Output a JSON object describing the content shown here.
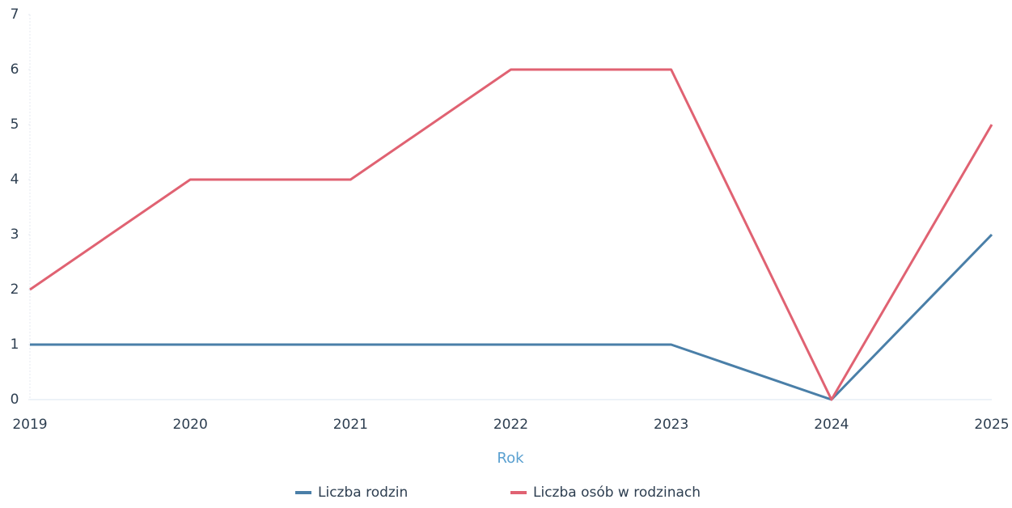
{
  "chart_data": {
    "type": "line",
    "x_label": "Rok",
    "categories": [
      "2019",
      "2020",
      "2021",
      "2022",
      "2023",
      "2024",
      "2025"
    ],
    "series": [
      {
        "name": "Liczba rodzin",
        "color": "#4a7fa8",
        "values": [
          1,
          1,
          1,
          1,
          1,
          0,
          3
        ]
      },
      {
        "name": "Liczba osób w rodzinach",
        "color": "#e06272",
        "values": [
          2,
          4,
          4,
          6,
          6,
          0,
          5
        ]
      }
    ],
    "ylim": [
      0,
      7
    ],
    "yticks": [
      0,
      1,
      2,
      3,
      4,
      5,
      6,
      7
    ],
    "legend": "bottom"
  }
}
